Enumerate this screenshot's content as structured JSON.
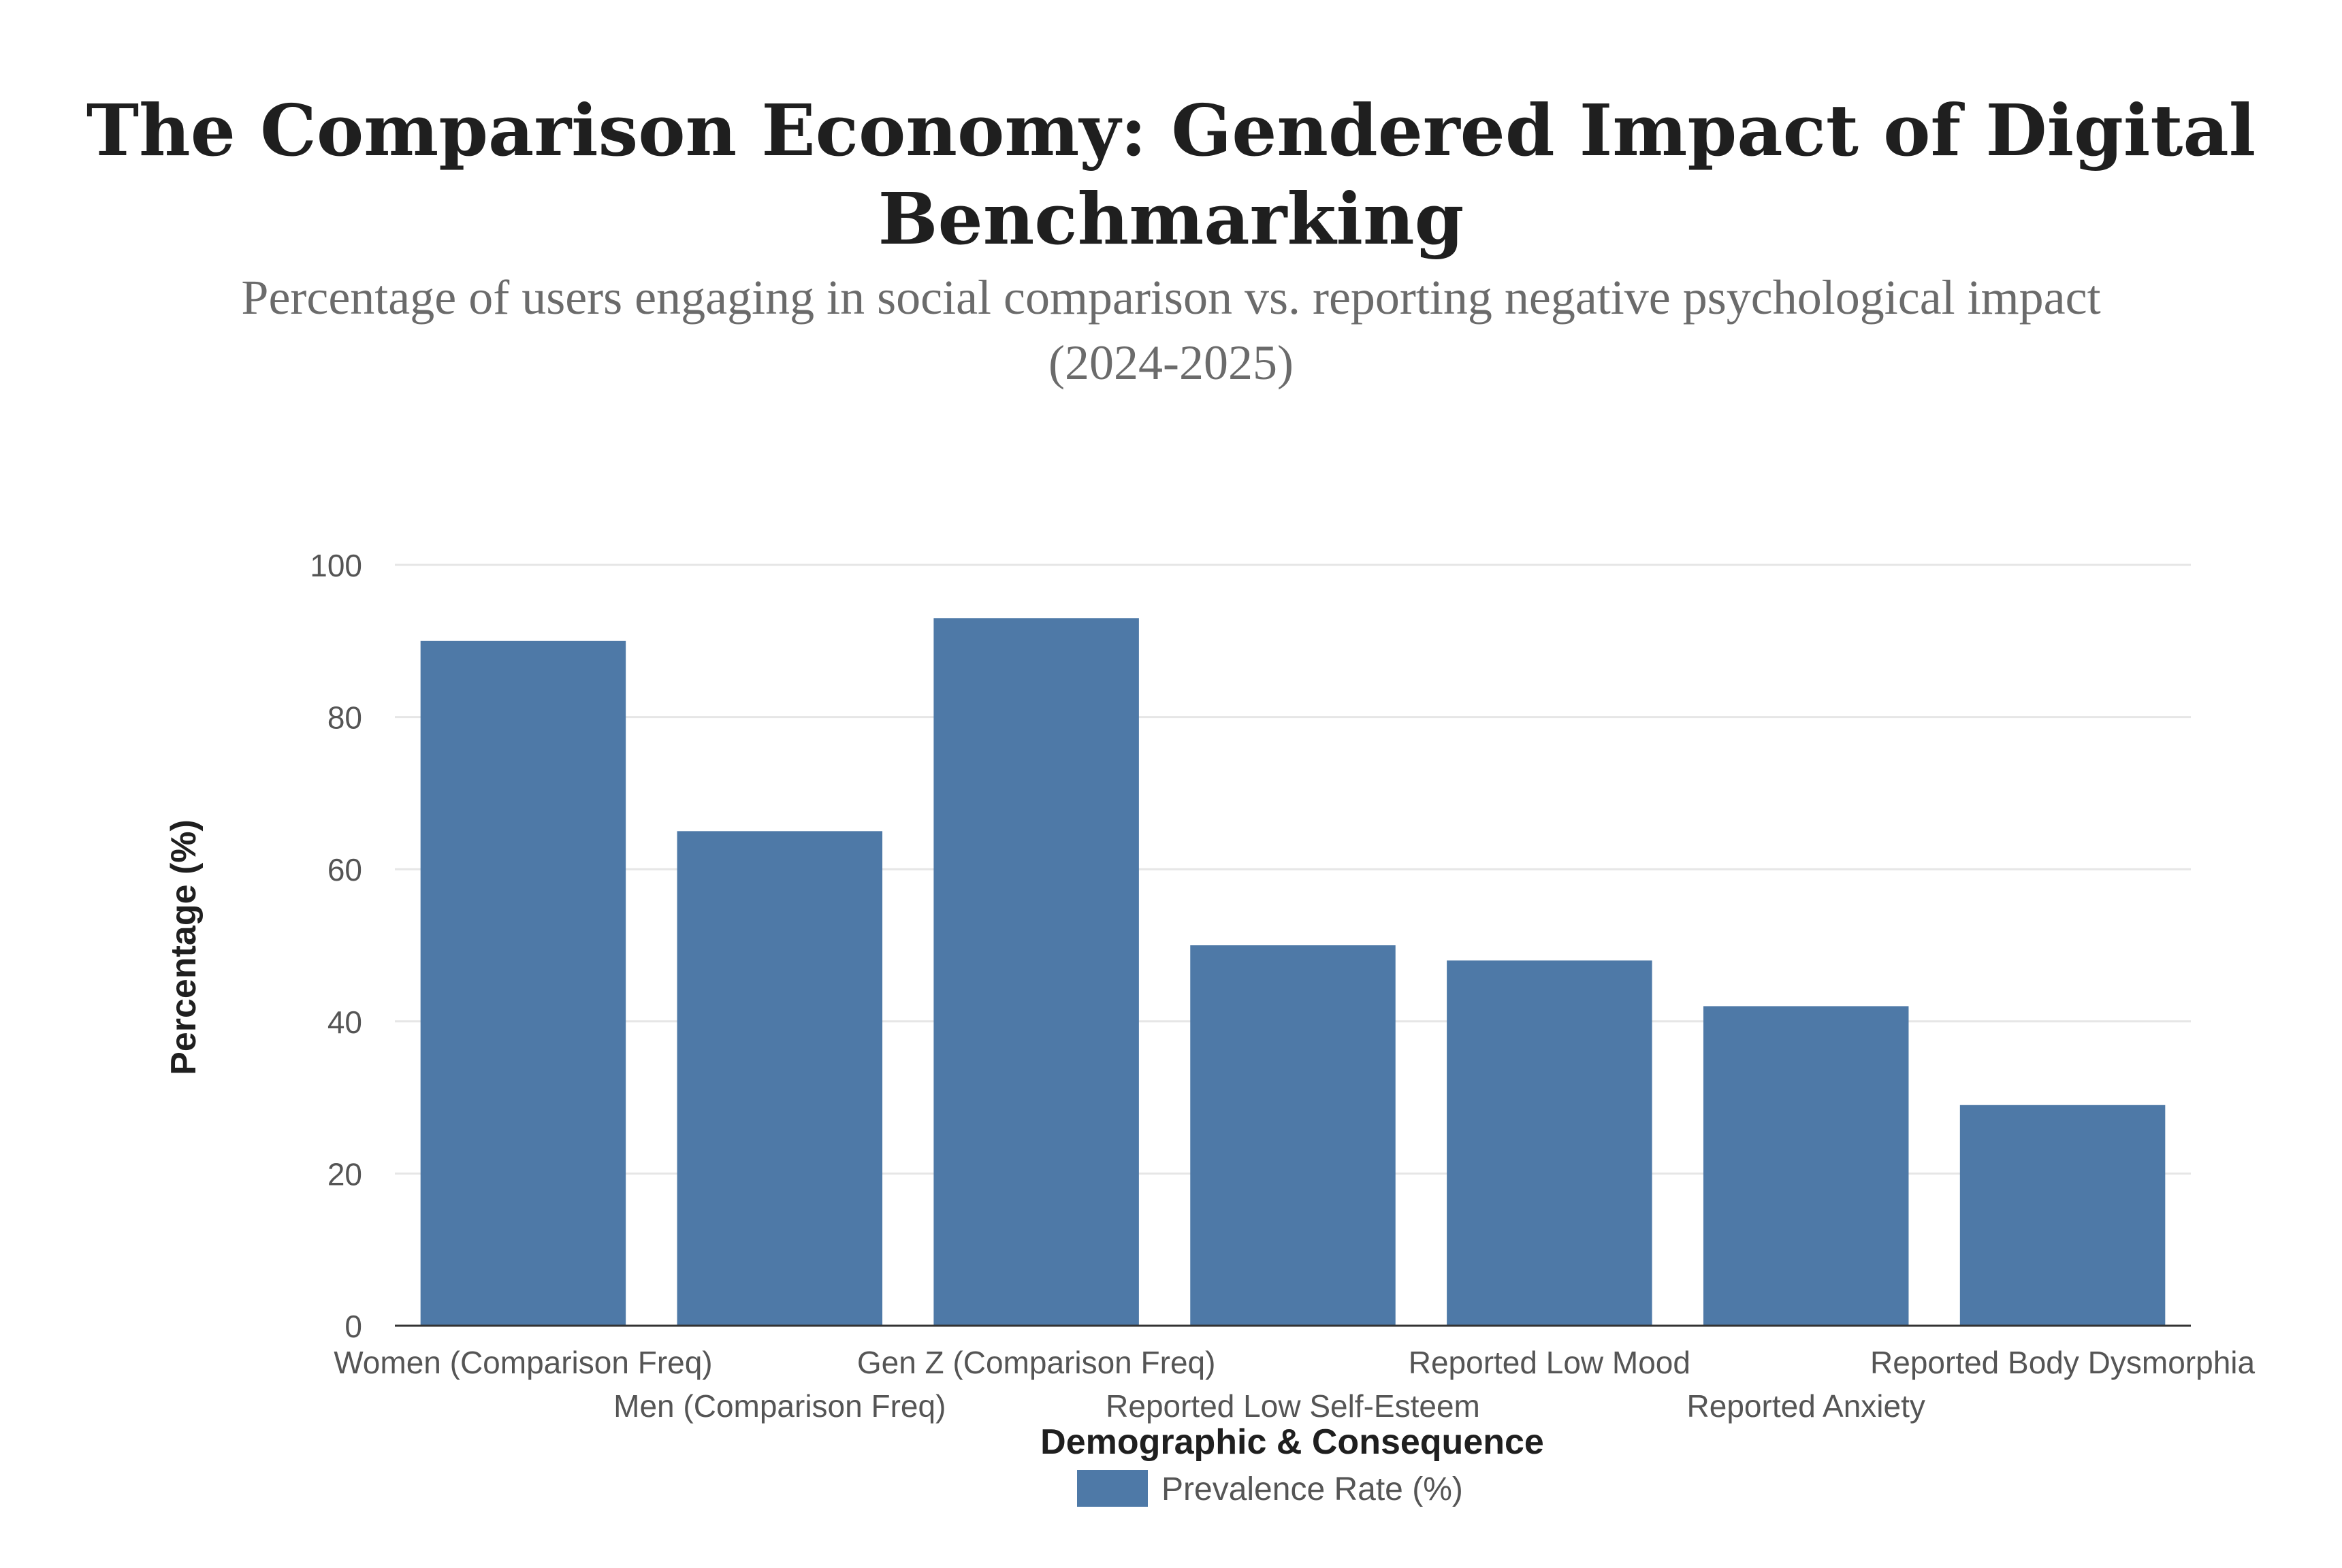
{
  "chart_data": {
    "type": "bar",
    "title_lines": [
      "The Comparison Economy: Gendered Impact of Digital",
      "Benchmarking"
    ],
    "subtitle_lines": [
      "Percentage of users engaging in social comparison vs. reporting negative psychological impact",
      "(2024-2025)"
    ],
    "xlabel": "Demographic & Consequence",
    "ylabel": "Percentage (%)",
    "ylim": [
      0,
      100
    ],
    "yticks": [
      0,
      20,
      40,
      60,
      80,
      100
    ],
    "grid": true,
    "categories": [
      "Women (Comparison Freq)",
      "Men (Comparison Freq)",
      "Gen Z (Comparison Freq)",
      "Reported Low Self-Esteem",
      "Reported Low Mood",
      "Reported Anxiety",
      "Reported Body Dysmorphia"
    ],
    "series": [
      {
        "name": "Prevalence Rate (%)",
        "values": [
          90,
          65,
          93,
          50,
          48,
          42,
          29
        ],
        "color": "#4e79a7"
      }
    ],
    "legend_position": "bottom-center"
  },
  "colors": {
    "grid": "#e6e6e6",
    "axis": "#333333",
    "tick_text": "#555555",
    "axis_title": "#1f1f1f"
  }
}
